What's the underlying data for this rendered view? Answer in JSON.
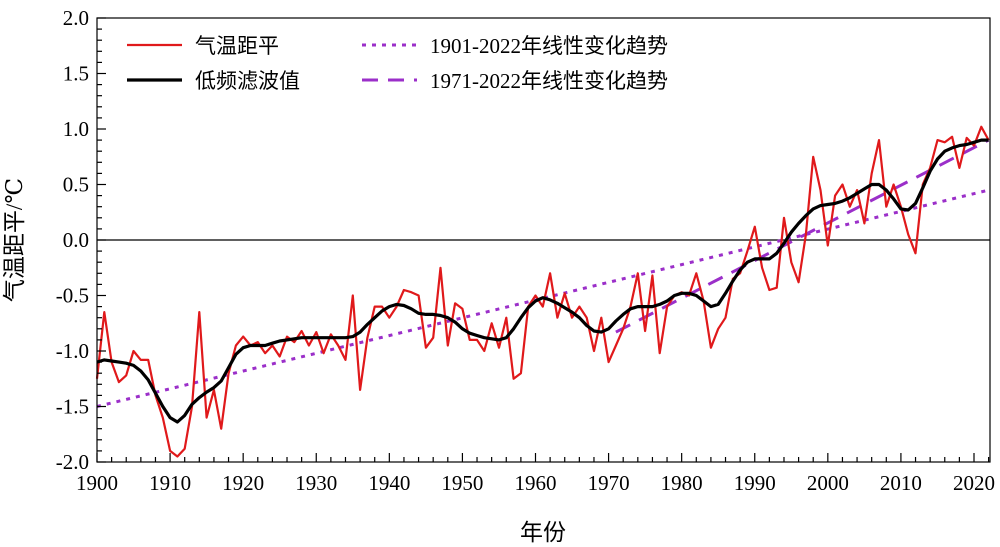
{
  "chart_data": {
    "type": "line",
    "title": "",
    "xlabel": "年份",
    "ylabel": "气温距平/℃",
    "xlim": [
      1900,
      2022
    ],
    "ylim": [
      -2.0,
      2.0
    ],
    "xticks": [
      1900,
      1910,
      1920,
      1930,
      1940,
      1950,
      1960,
      1970,
      1980,
      1990,
      2000,
      2010,
      2020
    ],
    "yticks": [
      "-2.0",
      "-1.5",
      "-1.0",
      "-0.5",
      "0.0",
      "0.5",
      "1.0",
      "1.5",
      "2.0"
    ],
    "grid": false,
    "zero_line": true,
    "legend_placement": "top-left",
    "x_start": 1900,
    "series": [
      {
        "name": "气温距平",
        "color": "#e0191b",
        "style": "solid",
        "values": [
          -1.25,
          -0.65,
          -1.1,
          -1.28,
          -1.22,
          -1.0,
          -1.08,
          -1.08,
          -1.4,
          -1.6,
          -1.9,
          -1.95,
          -1.88,
          -1.5,
          -0.65,
          -1.6,
          -1.35,
          -1.7,
          -1.2,
          -0.95,
          -0.87,
          -0.95,
          -0.92,
          -1.02,
          -0.95,
          -1.05,
          -0.87,
          -0.92,
          -0.82,
          -0.95,
          -0.83,
          -1.02,
          -0.85,
          -0.95,
          -1.08,
          -0.5,
          -1.35,
          -0.88,
          -0.6,
          -0.6,
          -0.7,
          -0.6,
          -0.45,
          -0.47,
          -0.5,
          -0.97,
          -0.88,
          -0.25,
          -0.95,
          -0.57,
          -0.62,
          -0.9,
          -0.9,
          -1.0,
          -0.75,
          -0.97,
          -0.7,
          -1.25,
          -1.2,
          -0.6,
          -0.5,
          -0.6,
          -0.3,
          -0.7,
          -0.48,
          -0.7,
          -0.6,
          -0.7,
          -1.0,
          -0.7,
          -1.1,
          -0.95,
          -0.8,
          -0.6,
          -0.3,
          -0.82,
          -0.32,
          -1.02,
          -0.6,
          -0.5,
          -0.47,
          -0.5,
          -0.3,
          -0.55,
          -0.97,
          -0.8,
          -0.7,
          -0.35,
          -0.3,
          -0.1,
          0.12,
          -0.25,
          -0.45,
          -0.43,
          0.2,
          -0.2,
          -0.38,
          0.05,
          0.75,
          0.45,
          -0.05,
          0.4,
          0.5,
          0.3,
          0.45,
          0.15,
          0.6,
          0.9,
          0.3,
          0.5,
          0.3,
          0.05,
          -0.12,
          0.5,
          0.65,
          0.9,
          0.88,
          0.93,
          0.65,
          0.92,
          0.85,
          1.02,
          0.9
        ]
      },
      {
        "name": "低频滤波值",
        "color": "#000000",
        "style": "solid-thick",
        "values": [
          -1.1,
          -1.08,
          -1.09,
          -1.1,
          -1.11,
          -1.13,
          -1.18,
          -1.26,
          -1.38,
          -1.5,
          -1.6,
          -1.64,
          -1.58,
          -1.48,
          -1.42,
          -1.37,
          -1.33,
          -1.27,
          -1.15,
          -1.03,
          -0.97,
          -0.95,
          -0.95,
          -0.95,
          -0.93,
          -0.91,
          -0.9,
          -0.89,
          -0.88,
          -0.88,
          -0.88,
          -0.88,
          -0.88,
          -0.88,
          -0.88,
          -0.87,
          -0.83,
          -0.76,
          -0.7,
          -0.64,
          -0.6,
          -0.58,
          -0.59,
          -0.62,
          -0.66,
          -0.67,
          -0.67,
          -0.68,
          -0.7,
          -0.74,
          -0.8,
          -0.84,
          -0.86,
          -0.88,
          -0.89,
          -0.9,
          -0.88,
          -0.8,
          -0.7,
          -0.61,
          -0.55,
          -0.52,
          -0.54,
          -0.57,
          -0.61,
          -0.65,
          -0.7,
          -0.77,
          -0.82,
          -0.83,
          -0.8,
          -0.73,
          -0.67,
          -0.62,
          -0.6,
          -0.6,
          -0.6,
          -0.58,
          -0.55,
          -0.5,
          -0.48,
          -0.48,
          -0.5,
          -0.55,
          -0.6,
          -0.58,
          -0.48,
          -0.37,
          -0.27,
          -0.2,
          -0.17,
          -0.17,
          -0.17,
          -0.12,
          -0.03,
          0.07,
          0.15,
          0.22,
          0.28,
          0.31,
          0.32,
          0.33,
          0.35,
          0.38,
          0.42,
          0.46,
          0.5,
          0.5,
          0.45,
          0.37,
          0.28,
          0.27,
          0.33,
          0.47,
          0.62,
          0.73,
          0.8,
          0.83,
          0.85,
          0.86,
          0.88,
          0.9,
          0.9
        ]
      },
      {
        "name": "1901-2022年线性变化趋势",
        "color": "#9b2fc9",
        "style": "dotted",
        "x": [
          1900,
          2022
        ],
        "values": [
          -1.5,
          0.45
        ]
      },
      {
        "name": "1971-2022年线性变化趋势",
        "color": "#9b2fc9",
        "style": "dashed",
        "x": [
          1971,
          2022
        ],
        "values": [
          -0.83,
          0.9
        ]
      }
    ]
  }
}
